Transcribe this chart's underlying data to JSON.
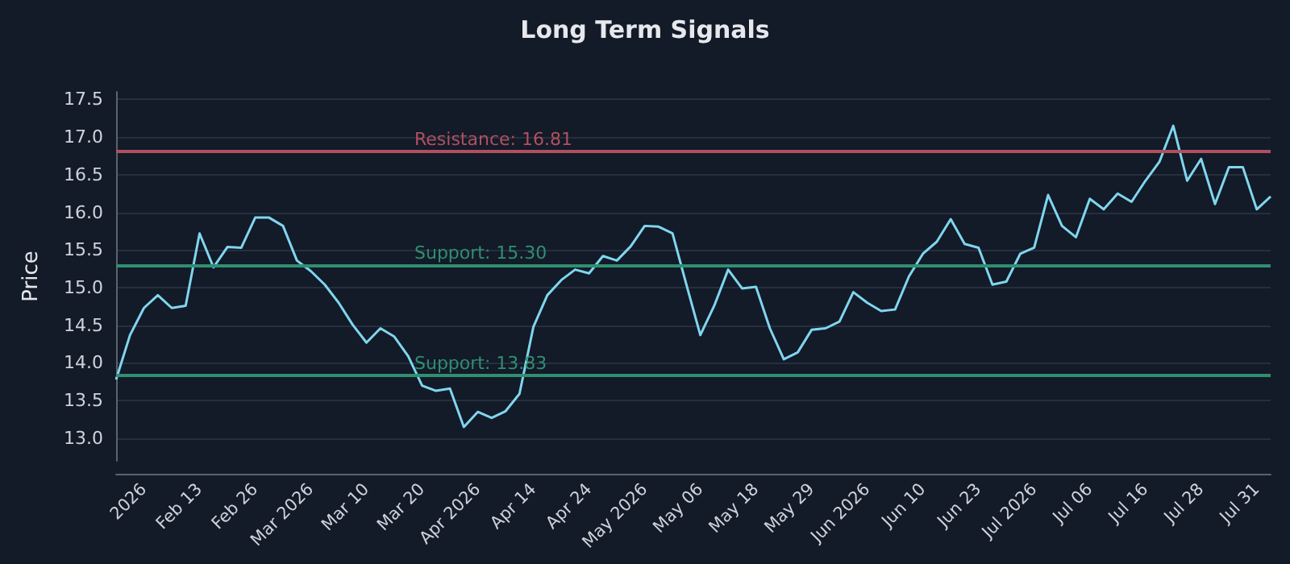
{
  "chart_data": {
    "type": "line",
    "title": "Long Term Signals",
    "ylabel": "Price",
    "categories": [
      null,
      null,
      "2026",
      null,
      null,
      null,
      "Feb 13",
      null,
      null,
      null,
      "Feb 26",
      null,
      null,
      null,
      "Mar 2026",
      null,
      null,
      null,
      "Mar 10",
      null,
      null,
      null,
      "Mar 20",
      null,
      null,
      null,
      "Apr 2026",
      null,
      null,
      null,
      "Apr 14",
      null,
      null,
      null,
      "Apr 24",
      null,
      null,
      null,
      "May 2026",
      null,
      null,
      null,
      "May 06",
      null,
      null,
      null,
      "May 18",
      null,
      null,
      null,
      "May 29",
      null,
      null,
      null,
      "Jun 2026",
      null,
      null,
      null,
      "Jun 10",
      null,
      null,
      null,
      "Jun 23",
      null,
      null,
      null,
      "Jul 2026",
      null,
      null,
      null,
      "Jul 06",
      null,
      null,
      null,
      "Jul 16",
      null,
      null,
      null,
      "Jul 28",
      null,
      null,
      null,
      "Jul 31",
      null
    ],
    "series": [
      {
        "color": "#7fd6ee",
        "values": [
          13.78,
          14.37,
          14.73,
          14.9,
          14.73,
          14.76,
          15.72,
          15.27,
          15.54,
          15.53,
          15.93,
          15.93,
          15.82,
          15.36,
          15.22,
          15.04,
          14.8,
          14.51,
          14.27,
          14.46,
          14.35,
          14.09,
          13.7,
          13.63,
          13.66,
          13.15,
          13.35,
          13.27,
          13.36,
          13.59,
          14.48,
          14.9,
          15.1,
          15.24,
          15.19,
          15.42,
          15.36,
          15.55,
          15.82,
          15.81,
          15.72,
          15.04,
          14.37,
          14.76,
          15.24,
          14.99,
          15.01,
          14.46,
          14.05,
          14.14,
          14.44,
          14.46,
          14.55,
          14.94,
          14.8,
          14.69,
          14.71,
          15.15,
          15.45,
          15.61,
          15.91,
          15.58,
          15.53,
          15.04,
          15.08,
          15.45,
          15.53,
          16.23,
          15.82,
          15.67,
          16.18,
          16.04,
          16.25,
          16.14,
          16.42,
          16.67,
          17.15,
          16.42,
          16.71,
          16.11,
          16.6,
          16.6,
          16.04,
          16.21
        ]
      }
    ],
    "ylim": [
      12.7,
      17.6
    ],
    "yticks": [
      {
        "value": 13,
        "label": "13.0"
      },
      13.5,
      {
        "value": 14,
        "label": "14.0"
      },
      14.5,
      {
        "value": 15,
        "label": "15.0"
      },
      15.5,
      {
        "value": 16,
        "label": "16.0"
      },
      16.5,
      {
        "value": 17,
        "label": "17.0"
      },
      17.5
    ],
    "ref_lines": [
      {
        "axis": "y",
        "value": 16.81,
        "label": "Resistance: 16.81",
        "color": "#b0505f"
      },
      {
        "axis": "y",
        "value": 15.3,
        "label": "Support: 15.30",
        "color": "#2f8f70"
      },
      {
        "axis": "y",
        "value": 13.83,
        "label": "Support: 13.83",
        "color": "#2f8f70"
      }
    ],
    "grid": "y",
    "marker": "none",
    "line_style": "solid"
  }
}
